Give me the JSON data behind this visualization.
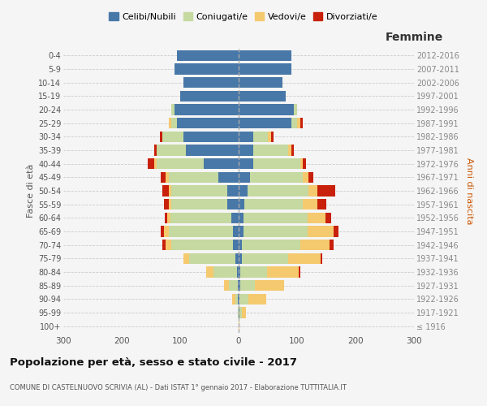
{
  "age_groups": [
    "100+",
    "95-99",
    "90-94",
    "85-89",
    "80-84",
    "75-79",
    "70-74",
    "65-69",
    "60-64",
    "55-59",
    "50-54",
    "45-49",
    "40-44",
    "35-39",
    "30-34",
    "25-29",
    "20-24",
    "15-19",
    "10-14",
    "5-9",
    "0-4"
  ],
  "birth_years": [
    "≤ 1916",
    "1917-1921",
    "1922-1926",
    "1927-1931",
    "1932-1936",
    "1937-1941",
    "1942-1946",
    "1947-1951",
    "1952-1956",
    "1957-1961",
    "1962-1966",
    "1967-1971",
    "1972-1976",
    "1977-1981",
    "1982-1986",
    "1987-1991",
    "1992-1996",
    "1997-2001",
    "2002-2006",
    "2007-2011",
    "2012-2016"
  ],
  "males": {
    "celibi": [
      0,
      0,
      1,
      2,
      3,
      5,
      10,
      10,
      12,
      20,
      20,
      35,
      60,
      90,
      95,
      105,
      110,
      100,
      95,
      110,
      105
    ],
    "coniugati": [
      0,
      1,
      5,
      15,
      40,
      80,
      105,
      110,
      105,
      95,
      95,
      85,
      80,
      50,
      35,
      10,
      5,
      0,
      0,
      0,
      0
    ],
    "vedovi": [
      0,
      1,
      5,
      8,
      12,
      10,
      10,
      8,
      5,
      5,
      5,
      5,
      5,
      0,
      0,
      5,
      0,
      0,
      0,
      0,
      0
    ],
    "divorziati": [
      0,
      0,
      0,
      0,
      0,
      0,
      5,
      5,
      5,
      8,
      10,
      8,
      10,
      5,
      5,
      0,
      0,
      0,
      0,
      0,
      0
    ]
  },
  "females": {
    "nubili": [
      0,
      2,
      2,
      3,
      3,
      5,
      5,
      8,
      8,
      10,
      15,
      20,
      25,
      25,
      25,
      90,
      95,
      80,
      75,
      90,
      90
    ],
    "coniugate": [
      0,
      3,
      15,
      25,
      45,
      80,
      100,
      110,
      110,
      100,
      105,
      90,
      80,
      60,
      25,
      10,
      5,
      0,
      0,
      0,
      0
    ],
    "vedove": [
      1,
      8,
      30,
      50,
      55,
      55,
      50,
      45,
      30,
      25,
      15,
      10,
      5,
      5,
      5,
      5,
      0,
      0,
      0,
      0,
      0
    ],
    "divorziate": [
      0,
      0,
      0,
      0,
      3,
      3,
      8,
      8,
      10,
      15,
      30,
      8,
      5,
      5,
      5,
      5,
      0,
      0,
      0,
      0,
      0
    ]
  },
  "colors": {
    "celibi": "#4878a8",
    "coniugati": "#c5d9a0",
    "vedovi": "#f5c96e",
    "divorziati": "#c8200a"
  },
  "title": "Popolazione per età, sesso e stato civile - 2017",
  "subtitle": "COMUNE DI CASTELNUOVO SCRIVIA (AL) - Dati ISTAT 1° gennaio 2017 - Elaborazione TUTTITALIA.IT",
  "xlabel_right": "Femmine",
  "ylabel_left": "Fasce di età",
  "ylabel_right": "Anni di nascita",
  "xlim": 300,
  "legend_labels": [
    "Celibi/Nubili",
    "Coniugati/e",
    "Vedovi/e",
    "Divorziati/e"
  ],
  "bg_color": "#f5f5f5"
}
